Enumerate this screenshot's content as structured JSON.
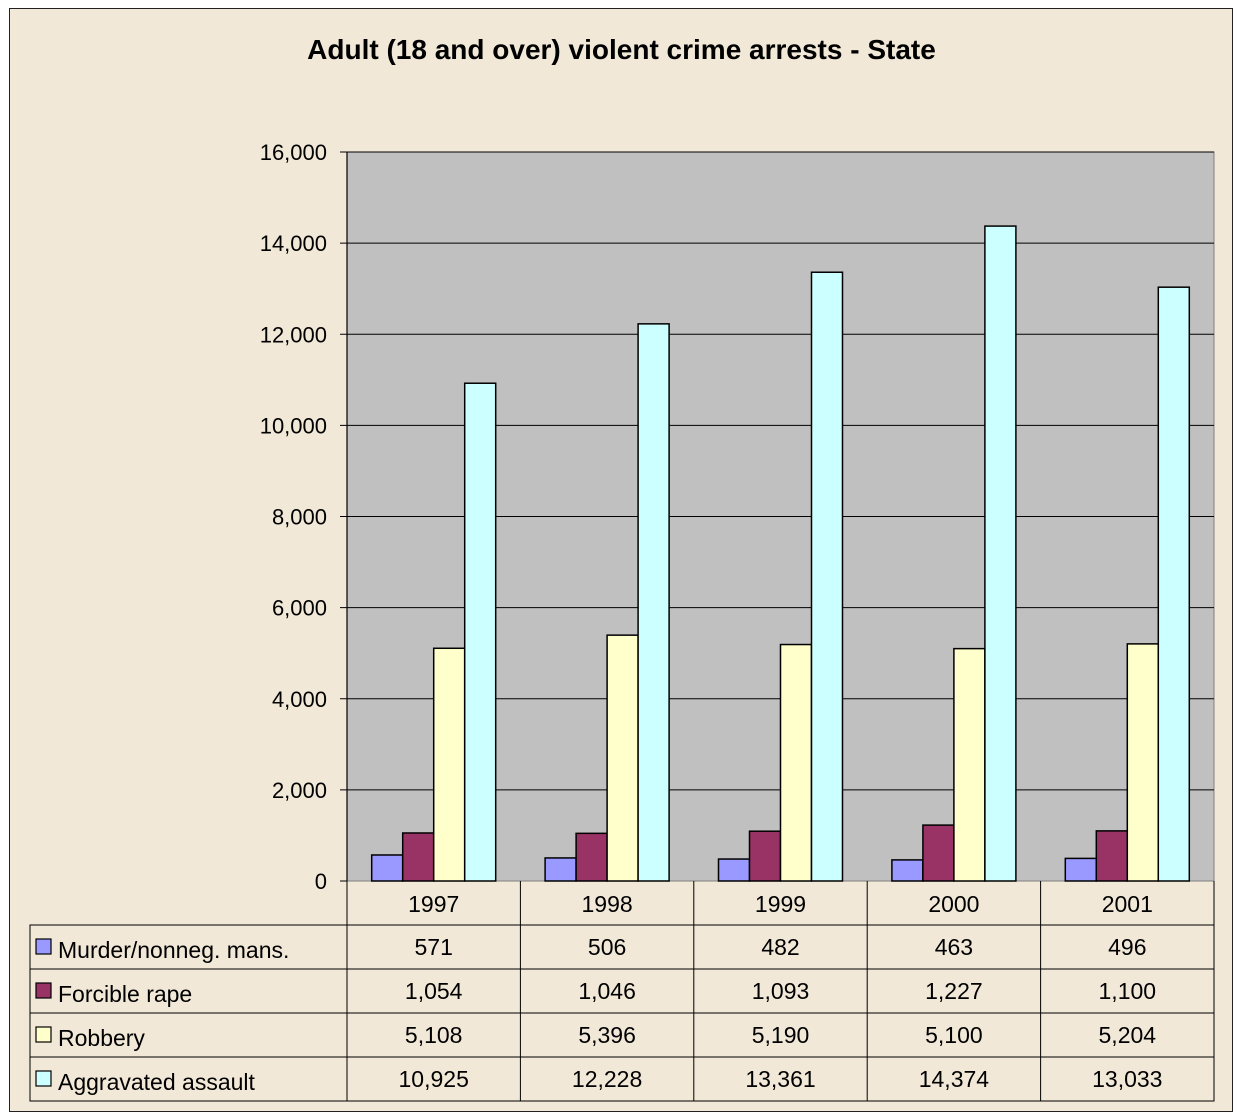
{
  "chart_data": {
    "type": "bar",
    "title": "Adult (18 and over) violent crime arrests - State",
    "categories": [
      "1997",
      "1998",
      "1999",
      "2000",
      "2001"
    ],
    "series": [
      {
        "name": "Murder/nonneg. mans.",
        "color": "#9999ff",
        "values": [
          571,
          506,
          482,
          463,
          496
        ],
        "labels": [
          "571",
          "506",
          "482",
          "463",
          "496"
        ]
      },
      {
        "name": "Forcible rape",
        "color": "#993366",
        "values": [
          1054,
          1046,
          1093,
          1227,
          1100
        ],
        "labels": [
          "1,054",
          "1,046",
          "1,093",
          "1,227",
          "1,100"
        ]
      },
      {
        "name": "Robbery",
        "color": "#ffffcc",
        "values": [
          5108,
          5396,
          5190,
          5100,
          5204
        ],
        "labels": [
          "5,108",
          "5,396",
          "5,190",
          "5,100",
          "5,204"
        ]
      },
      {
        "name": "Aggravated assault",
        "color": "#ccffff",
        "values": [
          10925,
          12228,
          13361,
          14374,
          13033
        ],
        "labels": [
          "10,925",
          "12,228",
          "13,361",
          "14,374",
          "13,033"
        ]
      }
    ],
    "ylim": [
      0,
      16000
    ],
    "yticks": [
      "0",
      "2,000",
      "4,000",
      "6,000",
      "8,000",
      "10,000",
      "12,000",
      "14,000",
      "16,000"
    ],
    "grid": true,
    "plot_background": "#c0c0c0",
    "legend": "data-table"
  }
}
